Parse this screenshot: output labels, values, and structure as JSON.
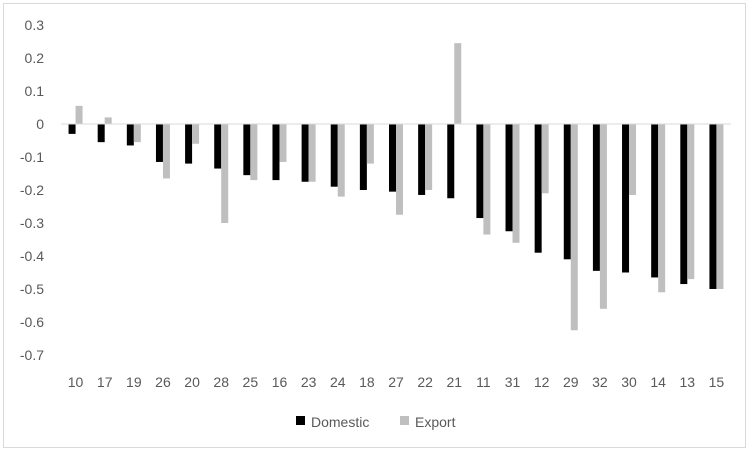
{
  "chart_data": {
    "type": "bar",
    "title": "",
    "xlabel": "",
    "ylabel": "",
    "categories": [
      "10",
      "17",
      "19",
      "26",
      "20",
      "28",
      "25",
      "16",
      "23",
      "24",
      "18",
      "27",
      "22",
      "21",
      "11",
      "31",
      "12",
      "29",
      "32",
      "30",
      "14",
      "13",
      "15"
    ],
    "series": [
      {
        "name": "Domestic",
        "color": "#000000",
        "values": [
          -0.03,
          -0.055,
          -0.065,
          -0.115,
          -0.12,
          -0.135,
          -0.155,
          -0.17,
          -0.175,
          -0.19,
          -0.2,
          -0.205,
          -0.215,
          -0.225,
          -0.285,
          -0.325,
          -0.39,
          -0.41,
          -0.445,
          -0.45,
          -0.465,
          -0.485,
          -0.5
        ]
      },
      {
        "name": "Export",
        "color": "#bfbfbf",
        "values": [
          0.055,
          0.02,
          -0.055,
          -0.165,
          -0.06,
          -0.3,
          -0.17,
          -0.115,
          -0.175,
          -0.22,
          -0.12,
          -0.275,
          -0.2,
          0.245,
          -0.335,
          -0.36,
          -0.21,
          -0.625,
          -0.56,
          -0.215,
          -0.51,
          -0.47,
          -0.5
        ]
      }
    ],
    "y_ticks": [
      "0.3",
      "0.2",
      "0.1",
      "0",
      "-0.1",
      "-0.2",
      "-0.3",
      "-0.4",
      "-0.5",
      "-0.6",
      "-0.7"
    ],
    "ylim": [
      -0.7,
      0.3
    ],
    "grid": false,
    "legend_position": "bottom"
  }
}
